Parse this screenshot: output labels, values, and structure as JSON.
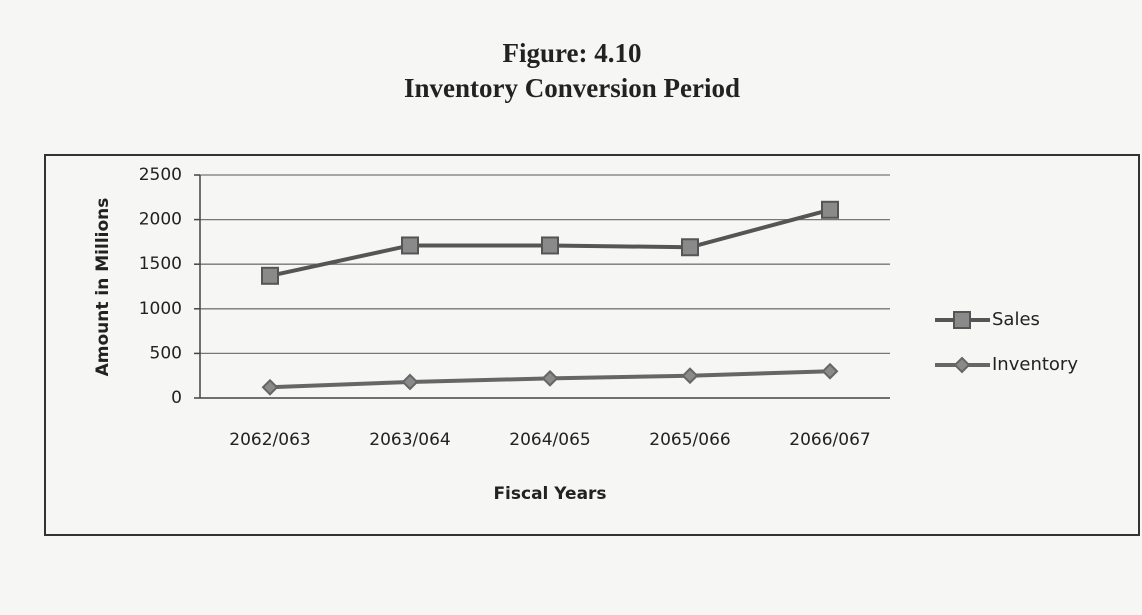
{
  "chart_data": {
    "type": "line",
    "title": "Figure: 4.10",
    "subtitle": "Inventory Conversion Period",
    "x_label": "Fiscal Years",
    "y_label": "Amount in Millions",
    "categories": [
      "2062/063",
      "2063/064",
      "2064/065",
      "2065/066",
      "2066/067"
    ],
    "series": [
      {
        "name": "Sales",
        "color": "#555555",
        "marker": "square",
        "values": [
          1370,
          1710,
          1710,
          1690,
          2110
        ]
      },
      {
        "name": "Inventory",
        "color": "#666666",
        "marker": "diamond",
        "values": [
          120,
          180,
          220,
          250,
          300
        ]
      }
    ],
    "ylim": [
      0,
      2500
    ],
    "yticks": [
      0,
      500,
      1000,
      1500,
      2000,
      2500
    ],
    "grid": true,
    "legend": "right"
  }
}
